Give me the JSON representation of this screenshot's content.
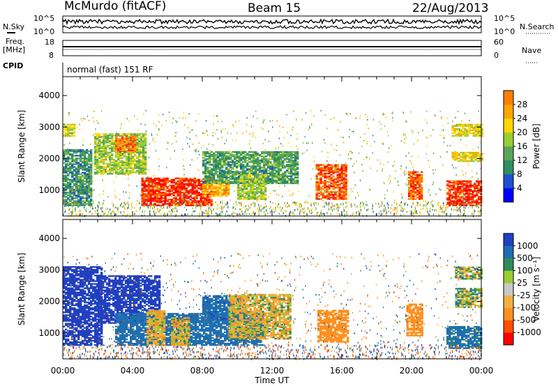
{
  "header": {
    "station": "McMurdo (fitACF)",
    "beam": "Beam 15",
    "date": "22/Aug/2013"
  },
  "top_panels": {
    "nsky_label": "N.Sky",
    "nsearch_label": "N.Search",
    "noise_ticks": [
      "10^5",
      "10^0"
    ],
    "freq_label_1": "Freq.",
    "freq_label_2": "[MHz]",
    "freq_ticks": [
      "18",
      "8"
    ],
    "nave_label": "Nave",
    "nave_ticks": [
      "60",
      "0"
    ],
    "cpid_label": "CPID",
    "cpid_text": "normal (fast) 151 RF"
  },
  "colors": {
    "power_scale": [
      "#0000ff",
      "#1f4fd1",
      "#2f8f5f",
      "#5aa55a",
      "#9acd32",
      "#ffd700",
      "#ffa500",
      "#ff7f00",
      "#ff3300",
      "#ff0000"
    ],
    "velocity_scale": [
      "#ff0000",
      "#ff5000",
      "#ff9020",
      "#f2b040",
      "#c8c8c8",
      "#9acd32",
      "#2e8b57",
      "#1e6fb0",
      "#2040c0",
      "#1020ff"
    ]
  },
  "chart_data": [
    {
      "type": "heatmap",
      "name": "Power",
      "xlabel": "",
      "ylabel": "Slant Range [km]",
      "xlim": [
        0,
        24
      ],
      "ylim": [
        180,
        4600
      ],
      "yticks": [
        1000,
        2000,
        3000,
        4000
      ],
      "x_tick_labels": [
        "00:00",
        "04:00",
        "08:00",
        "12:00",
        "16:00",
        "20:00",
        "00:00"
      ],
      "colorbar": {
        "label": "Power [dB]",
        "ticks": [
          4,
          8,
          12,
          16,
          20,
          24,
          28
        ],
        "range": [
          0,
          32
        ]
      },
      "regions": [
        {
          "t0": 0.0,
          "t1": 1.6,
          "r0": 500,
          "r1": 2300,
          "v": 9
        },
        {
          "t0": 0.0,
          "t1": 0.7,
          "r0": 2700,
          "r1": 3100,
          "v": 16
        },
        {
          "t0": 1.8,
          "t1": 4.8,
          "r0": 1500,
          "r1": 2800,
          "v": 14
        },
        {
          "t0": 3.0,
          "t1": 4.2,
          "r0": 2200,
          "r1": 2700,
          "v": 24
        },
        {
          "t0": 4.5,
          "t1": 8.5,
          "r0": 500,
          "r1": 1400,
          "v": 28
        },
        {
          "t0": 8.0,
          "t1": 9.5,
          "r0": 800,
          "r1": 1300,
          "v": 20
        },
        {
          "t0": 8.0,
          "t1": 13.5,
          "r0": 1200,
          "r1": 2200,
          "v": 10
        },
        {
          "t0": 10.0,
          "t1": 11.6,
          "r0": 700,
          "r1": 1500,
          "v": 14
        },
        {
          "t0": 14.5,
          "t1": 16.2,
          "r0": 700,
          "r1": 1800,
          "v": 26
        },
        {
          "t0": 19.8,
          "t1": 20.6,
          "r0": 700,
          "r1": 1600,
          "v": 26
        },
        {
          "t0": 22.0,
          "t1": 24.0,
          "r0": 500,
          "r1": 1300,
          "v": 28
        },
        {
          "t0": 22.3,
          "t1": 24.0,
          "r0": 1900,
          "r1": 2200,
          "v": 18
        },
        {
          "t0": 22.3,
          "t1": 24.0,
          "r0": 2700,
          "r1": 3100,
          "v": 17
        }
      ]
    },
    {
      "type": "heatmap",
      "name": "Velocity",
      "xlabel": "Time UT",
      "ylabel": "Slant Range [km]",
      "xlim": [
        0,
        24
      ],
      "ylim": [
        180,
        4600
      ],
      "yticks": [
        1000,
        2000,
        3000,
        4000
      ],
      "x_tick_labels": [
        "00:00",
        "04:00",
        "08:00",
        "12:00",
        "16:00",
        "20:00",
        "00:00"
      ],
      "colorbar": {
        "label": "Velocity [m s⁻¹]",
        "ticks": [
          "-1000",
          "-500",
          "-100",
          "-25",
          "25",
          "100",
          "500",
          "1000"
        ]
      },
      "regions": [
        {
          "t0": 0.0,
          "t1": 2.2,
          "r0": 600,
          "r1": 3100,
          "v": 800
        },
        {
          "t0": 2.0,
          "t1": 5.5,
          "r0": 1300,
          "r1": 2800,
          "v": 700
        },
        {
          "t0": 3.0,
          "t1": 11.5,
          "r0": 600,
          "r1": 1600,
          "v": 300
        },
        {
          "t0": 4.8,
          "t1": 5.8,
          "r0": 600,
          "r1": 1700,
          "v": -80
        },
        {
          "t0": 6.2,
          "t1": 7.2,
          "r0": 600,
          "r1": 1500,
          "v": -70
        },
        {
          "t0": 8.0,
          "t1": 10.5,
          "r0": 1300,
          "r1": 2200,
          "v": 400
        },
        {
          "t0": 9.5,
          "t1": 13.0,
          "r0": 800,
          "r1": 2200,
          "v": -60
        },
        {
          "t0": 14.6,
          "t1": 16.3,
          "r0": 700,
          "r1": 1700,
          "v": -250
        },
        {
          "t0": 19.7,
          "t1": 20.6,
          "r0": 900,
          "r1": 1900,
          "v": -250
        },
        {
          "t0": 22.0,
          "t1": 24.0,
          "r0": 500,
          "r1": 1200,
          "v": 200
        },
        {
          "t0": 22.5,
          "t1": 24.0,
          "r0": 2700,
          "r1": 3100,
          "v": 10
        },
        {
          "t0": 22.5,
          "t1": 24.0,
          "r0": 1800,
          "r1": 2400,
          "v": 10
        }
      ]
    }
  ]
}
